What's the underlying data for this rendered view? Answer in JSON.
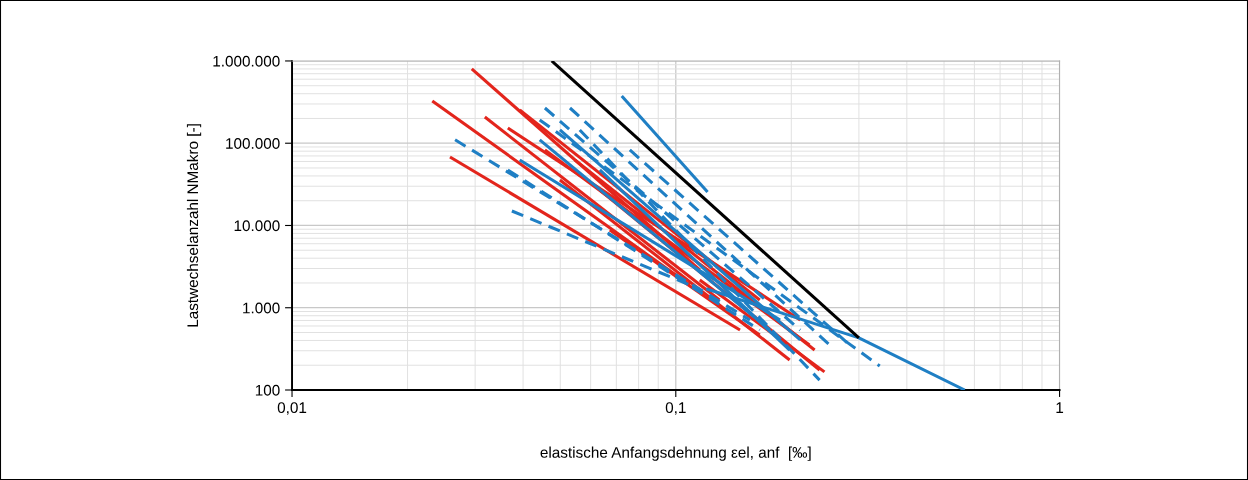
{
  "chart_data": {
    "type": "line",
    "xlabel": "elastische Anfangsdehnung εel, anf  [‰]",
    "ylabel": "Lastwechselanzahl NMakro [-]",
    "log": "xy",
    "grid": true,
    "marker": "none",
    "xlim": [
      0.01,
      1
    ],
    "xticks": [
      {
        "value": 0.01,
        "label": "0,01"
      },
      {
        "value": 0.1,
        "label": "0,1"
      },
      1
    ],
    "ylim": [
      100,
      1000000
    ],
    "yticks": [
      100,
      {
        "value": 1000,
        "label": "1.000"
      },
      {
        "value": 10000,
        "label": "10.000"
      },
      {
        "value": 100000,
        "label": "100.000"
      },
      {
        "value": 1000000,
        "label": "1.000.000"
      }
    ],
    "series": [
      {
        "color": "#e3251c",
        "line_style": "solid",
        "x": [
          0.0294,
          0.1155
        ],
        "values": [
          800000,
          2880
        ]
      },
      {
        "color": "#e3251c",
        "line_style": "solid",
        "x": [
          0.0232,
          0.1088
        ],
        "values": [
          327000,
          1890
        ]
      },
      {
        "color": "#e3251c",
        "line_style": "solid",
        "x": [
          0.0318,
          0.13
        ],
        "values": [
          208000,
          1240
        ]
      },
      {
        "color": "#e3251c",
        "line_style": "solid",
        "x": [
          0.0258,
          0.147
        ],
        "values": [
          68000,
          536
        ]
      },
      {
        "color": "#e3251c",
        "line_style": "solid",
        "x": [
          0.0365,
          0.211
        ],
        "values": [
          153000,
          710
        ]
      },
      {
        "color": "#e3251c",
        "line_style": "solid",
        "x": [
          0.0456,
          0.223
        ],
        "values": [
          82800,
          352
        ]
      },
      {
        "color": "#e3251c",
        "line_style": "solid",
        "x": [
          0.0499,
          0.198
        ],
        "values": [
          35700,
          232
        ]
      },
      {
        "color": "#e3251c",
        "line_style": "solid",
        "x": [
          0.0634,
          0.237
        ],
        "values": [
          27000,
          175
        ]
      },
      {
        "color": "#e3251c",
        "line_style": "solid",
        "x": [
          0.0673,
          0.1655
        ],
        "values": [
          8810,
          467
        ]
      },
      {
        "color": "#e3251c",
        "line_style": "solid",
        "x": [
          0.1155,
          0.244
        ],
        "values": [
          2170,
          166
        ]
      },
      {
        "color": "#e3251c",
        "line_style": "solid",
        "x": [
          0.0392,
          0.1655
        ],
        "values": [
          254000,
          1240
        ]
      },
      {
        "color": "#e3251c",
        "line_style": "solid",
        "x": [
          0.0546,
          0.23
        ],
        "values": [
          62600,
          306
        ]
      },
      {
        "color": "#1f7fc4",
        "line_style": "dashed",
        "x": [
          0.0374,
          0.1088
        ],
        "values": [
          15000,
          1890
        ]
      },
      {
        "color": "#1f7fc4",
        "line_style": "dashed",
        "x": [
          0.0365,
          0.1655
        ],
        "values": [
          47300,
          536
        ]
      },
      {
        "color": "#1f7fc4",
        "line_style": "dashed",
        "x": [
          0.0456,
          0.211
        ],
        "values": [
          268000,
          536
        ]
      },
      {
        "color": "#1f7fc4",
        "line_style": "dashed",
        "x": [
          0.053,
          0.252
        ],
        "values": [
          268000,
          352
        ]
      },
      {
        "color": "#1f7fc4",
        "line_style": "dashed",
        "x": [
          0.0442,
          0.34
        ],
        "values": [
          192000,
          196
        ]
      },
      {
        "color": "#1f7fc4",
        "line_style": "dashed",
        "x": [
          0.0562,
          0.237
        ],
        "values": [
          145000,
          132
        ]
      },
      {
        "color": "#1f7fc4",
        "line_style": "dashed",
        "x": [
          0.0266,
          0.156
        ],
        "values": [
          110000,
          710
        ]
      },
      {
        "color": "#1f7fc4",
        "line_style": "dashed",
        "x": [
          0.0759,
          0.284
        ],
        "values": [
          82800,
          352
        ]
      },
      {
        "color": "#1f7fc4",
        "line_style": "solid",
        "x": [
          0.0442,
          0.176
        ],
        "values": [
          110000,
          536
        ]
      },
      {
        "color": "#1f7fc4",
        "line_style": "solid",
        "x": [
          0.0499,
          0.211
        ],
        "values": [
          145000,
          406
        ]
      },
      {
        "color": "#1f7fc4",
        "line_style": "solid",
        "x": [
          0.0392,
          0.187
        ],
        "values": [
          62600,
          710
        ]
      },
      {
        "color": "#1f7fc4",
        "line_style": "solid",
        "x": [
          0.0634,
          0.198
        ],
        "values": [
          47300,
          306
        ]
      },
      {
        "color": "#1f7fc4",
        "line_style": "solid",
        "x": [
          0.0723,
          0.121
        ],
        "values": [
          375000,
          25500
        ]
      },
      {
        "color": "#1f7fc4",
        "line_style": "solid",
        "x": [
          0.12,
          0.3,
          0.566
        ],
        "values": [
          1700,
          430,
          100
        ]
      },
      {
        "color": "#000000",
        "line_style": "solid",
        "x": [
          0.0475,
          0.3
        ],
        "values": [
          1000000,
          430
        ]
      }
    ]
  }
}
